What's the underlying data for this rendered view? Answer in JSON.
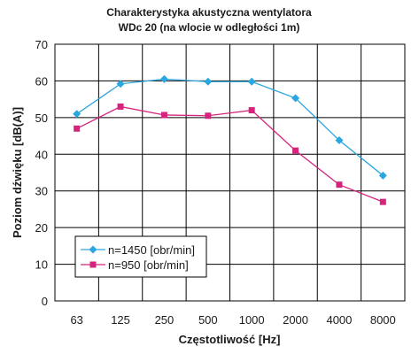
{
  "chart_data": {
    "type": "line",
    "title": "Charakterystyka akustyczna wentylatora",
    "subtitle": "WDc 20 (na wlocie w odległości 1m)",
    "xlabel": "Częstotliwość [Hz]",
    "ylabel": "Poziom dźwięku [dB(A)]",
    "categories": [
      "63",
      "125",
      "250",
      "500",
      "1000",
      "2000",
      "4000",
      "8000"
    ],
    "ylim": [
      0,
      70
    ],
    "yticks": [
      "0",
      "10",
      "20",
      "30",
      "40",
      "50",
      "60",
      "70"
    ],
    "grid": true,
    "legend_position": "bottom-left",
    "series": [
      {
        "name": "n=1450 [obr/min]",
        "color": "#2aa6e0",
        "marker": "diamond",
        "values": [
          51,
          59.2,
          60.5,
          59.8,
          59.8,
          55.3,
          43.8,
          34.2
        ]
      },
      {
        "name": "n=950 [obr/min]",
        "color": "#d6247e",
        "marker": "square",
        "values": [
          47,
          53,
          50.7,
          50.5,
          52,
          41,
          31.7,
          27
        ]
      }
    ]
  }
}
